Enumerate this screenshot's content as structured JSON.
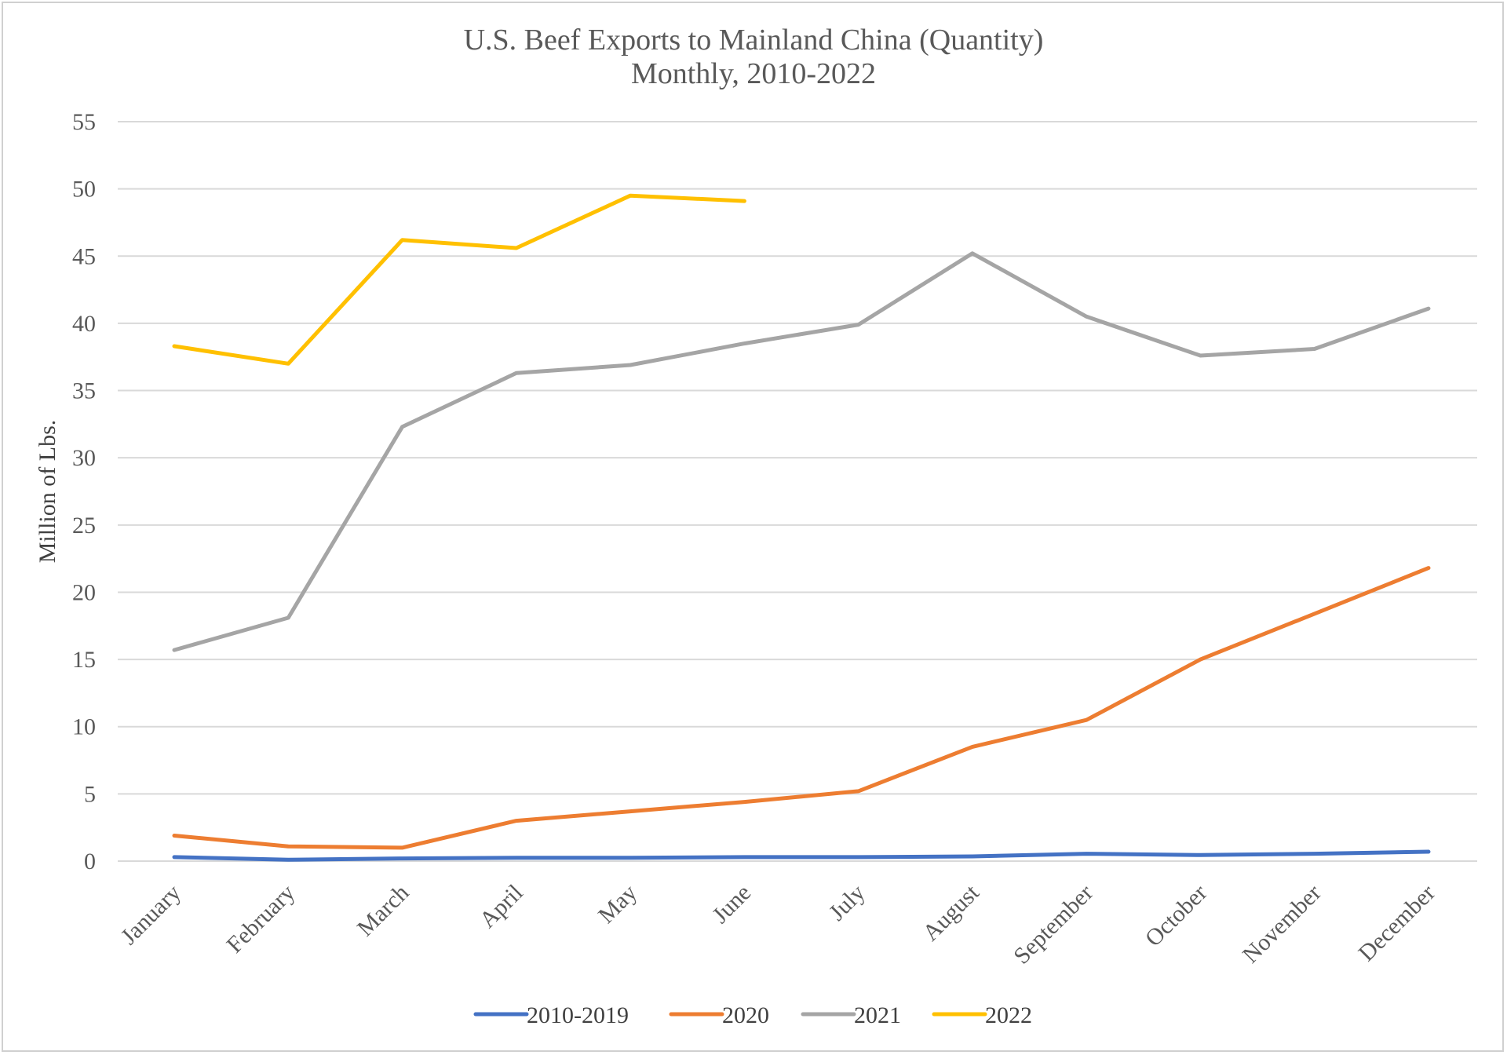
{
  "chart_data": {
    "type": "line",
    "title": "U.S. Beef Exports to Mainland China (Quantity)",
    "subtitle": "Monthly, 2010-2022",
    "xlabel": "",
    "ylabel": "Million of Lbs.",
    "ylim": [
      0,
      55
    ],
    "yticks": [
      0,
      5,
      10,
      15,
      20,
      25,
      30,
      35,
      40,
      45,
      50,
      55
    ],
    "grid": true,
    "legend_position": "bottom",
    "categories": [
      "January",
      "February",
      "March",
      "April",
      "May",
      "June",
      "July",
      "August",
      "September",
      "October",
      "November",
      "December"
    ],
    "series": [
      {
        "name": "2010-2019",
        "color": "#4472C4",
        "values": [
          0.3,
          0.1,
          0.2,
          0.25,
          0.25,
          0.3,
          0.3,
          0.35,
          0.55,
          0.45,
          0.55,
          0.7
        ]
      },
      {
        "name": "2020",
        "color": "#ED7D31",
        "values": [
          1.9,
          1.1,
          1.0,
          3.0,
          3.7,
          4.4,
          5.2,
          8.5,
          10.5,
          15.0,
          18.4,
          21.8
        ]
      },
      {
        "name": "2021",
        "color": "#A5A5A5",
        "values": [
          15.7,
          18.1,
          32.3,
          36.3,
          36.9,
          38.5,
          39.9,
          45.2,
          40.5,
          37.6,
          38.1,
          41.1
        ]
      },
      {
        "name": "2022",
        "color": "#FFC000",
        "values": [
          38.3,
          37.0,
          46.2,
          45.6,
          49.5,
          49.1,
          null,
          null,
          null,
          null,
          null,
          null
        ]
      }
    ]
  }
}
